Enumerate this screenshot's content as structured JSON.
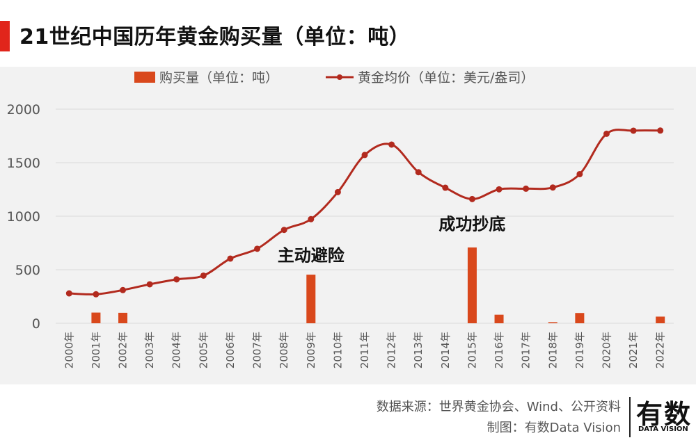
{
  "header": {
    "title": "21世纪中国历年黄金购买量（单位：吨）",
    "accent_color": "#e1251b"
  },
  "chart_data": {
    "type": "bar+line",
    "categories": [
      "2000年",
      "2001年",
      "2002年",
      "2003年",
      "2004年",
      "2005年",
      "2006年",
      "2007年",
      "2008年",
      "2009年",
      "2010年",
      "2011年",
      "2012年",
      "2013年",
      "2014年",
      "2015年",
      "2016年",
      "2017年",
      "2018年",
      "2019年",
      "2020年",
      "2021年",
      "2022年"
    ],
    "series": [
      {
        "name": "购买量（单位：吨）",
        "type": "bar",
        "color": "#d9481c",
        "values": [
          0,
          100,
          98,
          0,
          0,
          0,
          0,
          0,
          0,
          454,
          0,
          0,
          0,
          0,
          0,
          708,
          80,
          0,
          10,
          96,
          0,
          0,
          62
        ]
      },
      {
        "name": "黄金均价（单位：美元/盎司）",
        "type": "line",
        "color": "#b22a1e",
        "values": [
          279,
          271,
          310,
          364,
          410,
          445,
          604,
          696,
          872,
          972,
          1225,
          1572,
          1669,
          1411,
          1266,
          1160,
          1251,
          1257,
          1268,
          1393,
          1770,
          1799,
          1800
        ]
      }
    ],
    "yticks": [
      0,
      500,
      1000,
      1500,
      2000
    ],
    "ylim": [
      0,
      2000
    ],
    "grid": true,
    "legend_position": "top-center",
    "annotations": [
      {
        "text": "主动避险",
        "category": "2009年",
        "y": 580
      },
      {
        "text": "成功抄底",
        "category": "2015年",
        "y": 875
      }
    ]
  },
  "footer": {
    "source": "数据来源：世界黄金协会、Wind、公开资料",
    "credit": "制图：有数Data Vision",
    "logo_text": "有数",
    "logo_sub": "DATA VISION"
  }
}
